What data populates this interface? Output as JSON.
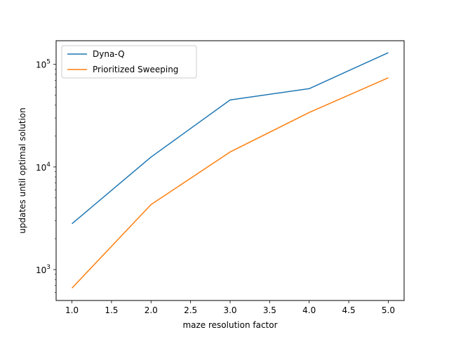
{
  "chart_data": {
    "type": "line",
    "title": "",
    "xlabel": "maze resolution factor",
    "ylabel": "updates until optimal solution",
    "x": [
      1,
      2,
      3,
      4,
      5
    ],
    "xlim": [
      0.8,
      5.2
    ],
    "ylim": [
      500,
      170000
    ],
    "yscale": "log",
    "x_ticks": [
      "1.0",
      "1.5",
      "2.0",
      "2.5",
      "3.0",
      "3.5",
      "4.0",
      "4.5",
      "5.0"
    ],
    "y_ticks": [
      {
        "base": "10",
        "exp": "3",
        "value": 1000
      },
      {
        "base": "10",
        "exp": "4",
        "value": 10000
      },
      {
        "base": "10",
        "exp": "5",
        "value": 100000
      }
    ],
    "grid": false,
    "legend_position": "top-left",
    "series": [
      {
        "name": "Dyna-Q",
        "color": "#1f77b4",
        "values": [
          2800,
          12500,
          45000,
          58000,
          130000
        ]
      },
      {
        "name": "Prioritized Sweeping",
        "color": "#ff7f0e",
        "values": [
          660,
          4300,
          14000,
          34000,
          74000
        ]
      }
    ]
  }
}
